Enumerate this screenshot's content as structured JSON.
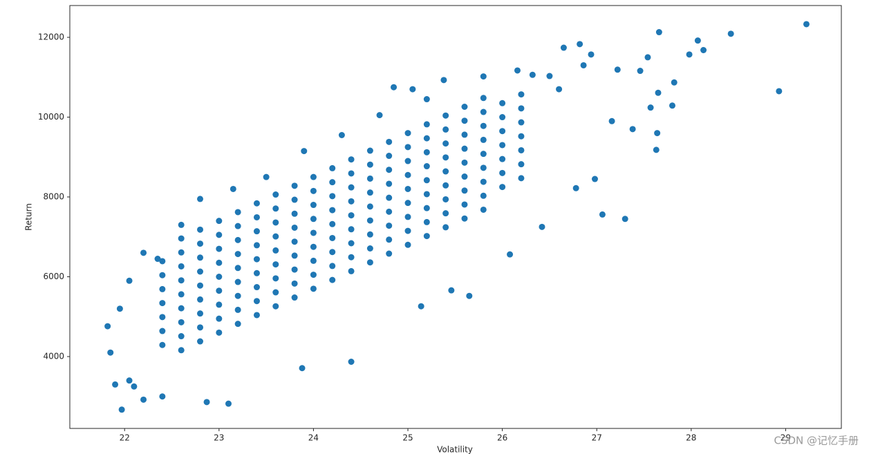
{
  "chart_data": {
    "type": "scatter",
    "x_label": "Volatility",
    "y_label": "Return",
    "watermark": "CSDN @记忆手册",
    "color": "#1f77b4",
    "xlim": [
      21.42,
      29.59
    ],
    "ylim": [
      2199,
      12797
    ],
    "xticks": [
      22,
      23,
      24,
      25,
      26,
      27,
      28,
      29
    ],
    "yticks": [
      4000,
      6000,
      8000,
      10000,
      12000
    ],
    "x": [
      29.22,
      27.66,
      28.42,
      28.07,
      28.13,
      27.98,
      28.93,
      27.82,
      27.8,
      27.64,
      27.63,
      27.3,
      27.06,
      27.54,
      27.46,
      27.57,
      27.65,
      27.22,
      26.82,
      26.65,
      26.94,
      26.86,
      27.38,
      27.16,
      26.98,
      26.78,
      26.42,
      26.08,
      25.65,
      25.14,
      25.46,
      24.4,
      23.88,
      23.1,
      22.87,
      21.97,
      22.2,
      22.4,
      21.82,
      21.85,
      21.9,
      22.05,
      22.1,
      21.95,
      22.05,
      22.2,
      22.35,
      22.6,
      22.8,
      23.15,
      23.5,
      23.9,
      24.3,
      24.7,
      24.85,
      25.05,
      25.38,
      25.2,
      25.8,
      26.16,
      26.32,
      26.5,
      26.6,
      22.4,
      22.4,
      22.4,
      22.4,
      22.4,
      22.4,
      22.4,
      22.6,
      22.6,
      22.6,
      22.6,
      22.6,
      22.6,
      22.6,
      22.6,
      22.6,
      22.8,
      22.8,
      22.8,
      22.8,
      22.8,
      22.8,
      22.8,
      22.8,
      22.8,
      23.0,
      23.0,
      23.0,
      23.0,
      23.0,
      23.0,
      23.0,
      23.0,
      23.0,
      23.2,
      23.2,
      23.2,
      23.2,
      23.2,
      23.2,
      23.2,
      23.2,
      23.2,
      23.4,
      23.4,
      23.4,
      23.4,
      23.4,
      23.4,
      23.4,
      23.4,
      23.4,
      23.6,
      23.6,
      23.6,
      23.6,
      23.6,
      23.6,
      23.6,
      23.6,
      23.6,
      23.8,
      23.8,
      23.8,
      23.8,
      23.8,
      23.8,
      23.8,
      23.8,
      23.8,
      24.0,
      24.0,
      24.0,
      24.0,
      24.0,
      24.0,
      24.0,
      24.0,
      24.0,
      24.2,
      24.2,
      24.2,
      24.2,
      24.2,
      24.2,
      24.2,
      24.2,
      24.2,
      24.4,
      24.4,
      24.4,
      24.4,
      24.4,
      24.4,
      24.4,
      24.4,
      24.4,
      24.6,
      24.6,
      24.6,
      24.6,
      24.6,
      24.6,
      24.6,
      24.6,
      24.6,
      24.8,
      24.8,
      24.8,
      24.8,
      24.8,
      24.8,
      24.8,
      24.8,
      24.8,
      25.0,
      25.0,
      25.0,
      25.0,
      25.0,
      25.0,
      25.0,
      25.0,
      25.0,
      25.2,
      25.2,
      25.2,
      25.2,
      25.2,
      25.2,
      25.2,
      25.2,
      25.2,
      25.4,
      25.4,
      25.4,
      25.4,
      25.4,
      25.4,
      25.4,
      25.4,
      25.4,
      25.6,
      25.6,
      25.6,
      25.6,
      25.6,
      25.6,
      25.6,
      25.6,
      25.6,
      25.8,
      25.8,
      25.8,
      25.8,
      25.8,
      25.8,
      25.8,
      25.8,
      25.8,
      26.0,
      26.0,
      26.0,
      26.0,
      26.0,
      26.0,
      26.0,
      26.2,
      26.2,
      26.2,
      26.2,
      26.2,
      26.2,
      26.2
    ],
    "values": [
      12330,
      12130,
      12090,
      11920,
      11680,
      11570,
      10650,
      10870,
      10290,
      9600,
      9180,
      7450,
      7560,
      11500,
      11160,
      10240,
      10610,
      11190,
      11830,
      11740,
      11570,
      11300,
      9700,
      9900,
      8450,
      8220,
      7250,
      6560,
      5520,
      5260,
      5660,
      3870,
      3710,
      2820,
      2860,
      2670,
      2920,
      3000,
      4760,
      4100,
      3300,
      3400,
      3250,
      5200,
      5900,
      6600,
      6450,
      7300,
      7950,
      8200,
      8500,
      9150,
      9550,
      10050,
      10750,
      10700,
      10930,
      10450,
      11020,
      11170,
      11060,
      11030,
      10700,
      4290,
      4640,
      4990,
      5340,
      5690,
      6040,
      6390,
      4160,
      4510,
      4860,
      5210,
      5560,
      5910,
      6260,
      6610,
      6960,
      4380,
      4730,
      5080,
      5430,
      5780,
      6130,
      6480,
      6830,
      7180,
      4600,
      4950,
      5300,
      5650,
      6000,
      6350,
      6700,
      7050,
      7400,
      4820,
      5170,
      5520,
      5870,
      6220,
      6570,
      6920,
      7270,
      7620,
      5040,
      5390,
      5740,
      6090,
      6440,
      6790,
      7140,
      7490,
      7840,
      5260,
      5610,
      5960,
      6310,
      6660,
      7010,
      7360,
      7710,
      8060,
      5480,
      5830,
      6180,
      6530,
      6880,
      7230,
      7580,
      7930,
      8280,
      5700,
      6050,
      6400,
      6750,
      7100,
      7450,
      7800,
      8150,
      8500,
      5920,
      6270,
      6620,
      6970,
      7320,
      7670,
      8020,
      8370,
      8720,
      6140,
      6490,
      6840,
      7190,
      7540,
      7890,
      8240,
      8590,
      8940,
      6360,
      6710,
      7060,
      7410,
      7760,
      8110,
      8460,
      8810,
      9160,
      6580,
      6930,
      7280,
      7630,
      7980,
      8330,
      8680,
      9030,
      9380,
      6800,
      7150,
      7500,
      7850,
      8200,
      8550,
      8900,
      9250,
      9600,
      7020,
      7370,
      7720,
      8070,
      8420,
      8770,
      9120,
      9470,
      9820,
      7240,
      7590,
      7940,
      8290,
      8640,
      8990,
      9340,
      9690,
      10040,
      7460,
      7810,
      8160,
      8510,
      8860,
      9210,
      9560,
      9910,
      10260,
      7680,
      8030,
      8380,
      8730,
      9080,
      9430,
      9780,
      10130,
      10480,
      8250,
      8600,
      8950,
      9300,
      9650,
      10000,
      10350,
      8470,
      8820,
      9170,
      9520,
      9870,
      10220,
      10570
    ]
  }
}
